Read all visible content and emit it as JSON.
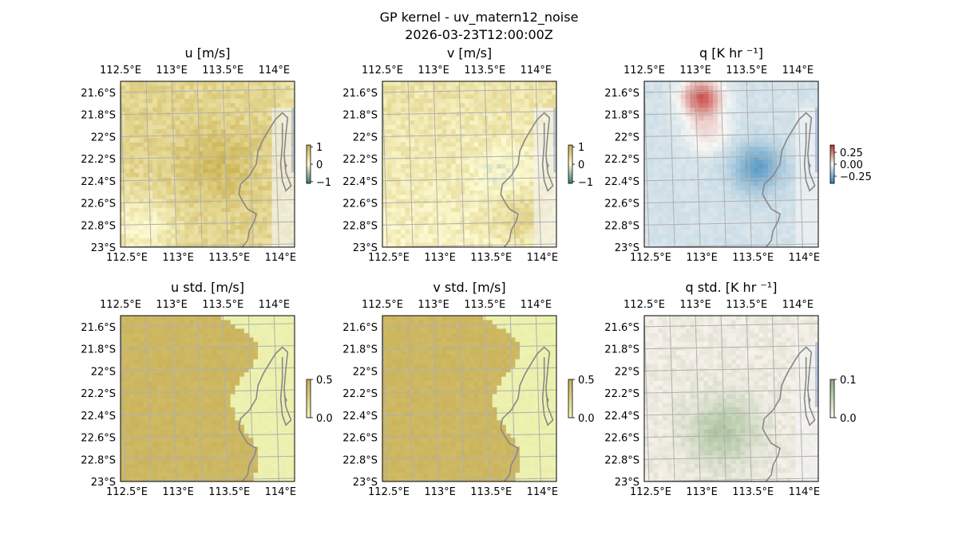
{
  "figure": {
    "title": "GP kernel - uv_matern12_noise",
    "subtitle": "2026-03-23T12:00:00Z"
  },
  "colors": {
    "land": "#f5f5f5",
    "ocean": "#9fb4dd",
    "coast": "#888888",
    "grid": "#b0b0b0",
    "diverging_low": "#2c7fb8",
    "diverging_mid": "#f7f7f4",
    "diverging_high": "#c0302a",
    "uv_low": "#3a7a7a",
    "uv_mid": "#fdfbd2",
    "uv_high": "#c8ae4a",
    "std_low": "#f0f8b8",
    "std_high": "#c8ae55",
    "qstd_low": "#fff5f2",
    "qstd_high": "#8ab07e"
  },
  "chart_data": [
    {
      "type": "heatmap",
      "title": "u [m/s]",
      "x_ticks": [
        "112.5°E",
        "113°E",
        "113.5°E",
        "114°E"
      ],
      "y_ticks": [
        "21.6°S",
        "21.8°S",
        "22°S",
        "22.2°S",
        "22.4°S",
        "22.6°S",
        "22.8°S",
        "23°S"
      ],
      "lon_range": [
        112.5,
        114.2
      ],
      "lat_range": [
        -23.0,
        -21.5
      ],
      "colorbar": {
        "ticks": [
          "1",
          "0",
          "−1"
        ],
        "values": [
          1,
          0,
          -1
        ],
        "range": [
          -1.1,
          1.1
        ],
        "palette": "uv"
      },
      "field": "u"
    },
    {
      "type": "heatmap",
      "title": "v [m/s]",
      "x_ticks": [
        "112.5°E",
        "113°E",
        "113.5°E",
        "114°E"
      ],
      "y_ticks": [
        "21.6°S",
        "21.8°S",
        "22°S",
        "22.2°S",
        "22.4°S",
        "22.6°S",
        "22.8°S",
        "23°S"
      ],
      "lon_range": [
        112.5,
        114.2
      ],
      "lat_range": [
        -23.0,
        -21.5
      ],
      "colorbar": {
        "ticks": [
          "1",
          "0",
          "−1"
        ],
        "values": [
          1,
          0,
          -1
        ],
        "range": [
          -1.1,
          1.1
        ],
        "palette": "uv"
      },
      "field": "v"
    },
    {
      "type": "heatmap",
      "title": "q [K hr ⁻¹]",
      "x_ticks": [
        "112.5°E",
        "113°E",
        "113.5°E",
        "114°E"
      ],
      "y_ticks": [
        "21.6°S",
        "21.8°S",
        "22°S",
        "22.2°S",
        "22.4°S",
        "22.6°S",
        "22.8°S",
        "23°S"
      ],
      "lon_range": [
        112.5,
        114.2
      ],
      "lat_range": [
        -23.0,
        -21.5
      ],
      "colorbar": {
        "ticks": [
          "0.25",
          "0.00",
          "−0.25"
        ],
        "values": [
          0.25,
          0,
          -0.25
        ],
        "range": [
          -0.4,
          0.4
        ],
        "palette": "diverging"
      },
      "field": "q"
    },
    {
      "type": "heatmap",
      "title": "u std. [m/s]",
      "x_ticks": [
        "112.5°E",
        "113°E",
        "113.5°E",
        "114°E"
      ],
      "y_ticks": [
        "21.6°S",
        "21.8°S",
        "22°S",
        "22.2°S",
        "22.4°S",
        "22.6°S",
        "22.8°S",
        "23°S"
      ],
      "lon_range": [
        112.5,
        114.2
      ],
      "lat_range": [
        -23.0,
        -21.5
      ],
      "colorbar": {
        "ticks": [
          "0.5",
          "0.0"
        ],
        "values": [
          0.5,
          0
        ],
        "range": [
          0,
          0.5
        ],
        "palette": "std"
      },
      "field": "ustd"
    },
    {
      "type": "heatmap",
      "title": "v std. [m/s]",
      "x_ticks": [
        "112.5°E",
        "113°E",
        "113.5°E",
        "114°E"
      ],
      "y_ticks": [
        "21.6°S",
        "21.8°S",
        "22°S",
        "22.2°S",
        "22.4°S",
        "22.6°S",
        "22.8°S",
        "23°S"
      ],
      "lon_range": [
        112.5,
        114.2
      ],
      "lat_range": [
        -23.0,
        -21.5
      ],
      "colorbar": {
        "ticks": [
          "0.5",
          "0.0"
        ],
        "values": [
          0.5,
          0
        ],
        "range": [
          0,
          0.5
        ],
        "palette": "std"
      },
      "field": "vstd"
    },
    {
      "type": "heatmap",
      "title": "q std. [K hr ⁻¹]",
      "x_ticks": [
        "112.5°E",
        "113°E",
        "113.5°E",
        "114°E"
      ],
      "y_ticks": [
        "21.6°S",
        "21.8°S",
        "22°S",
        "22.2°S",
        "22.4°S",
        "22.6°S",
        "22.8°S",
        "23°S"
      ],
      "lon_range": [
        112.5,
        114.2
      ],
      "lat_range": [
        -23.0,
        -21.5
      ],
      "colorbar": {
        "ticks": [
          "0.1",
          "0.0"
        ],
        "values": [
          0.1,
          0
        ],
        "range": [
          0,
          0.1
        ],
        "palette": "qstd"
      },
      "field": "qstd"
    }
  ]
}
